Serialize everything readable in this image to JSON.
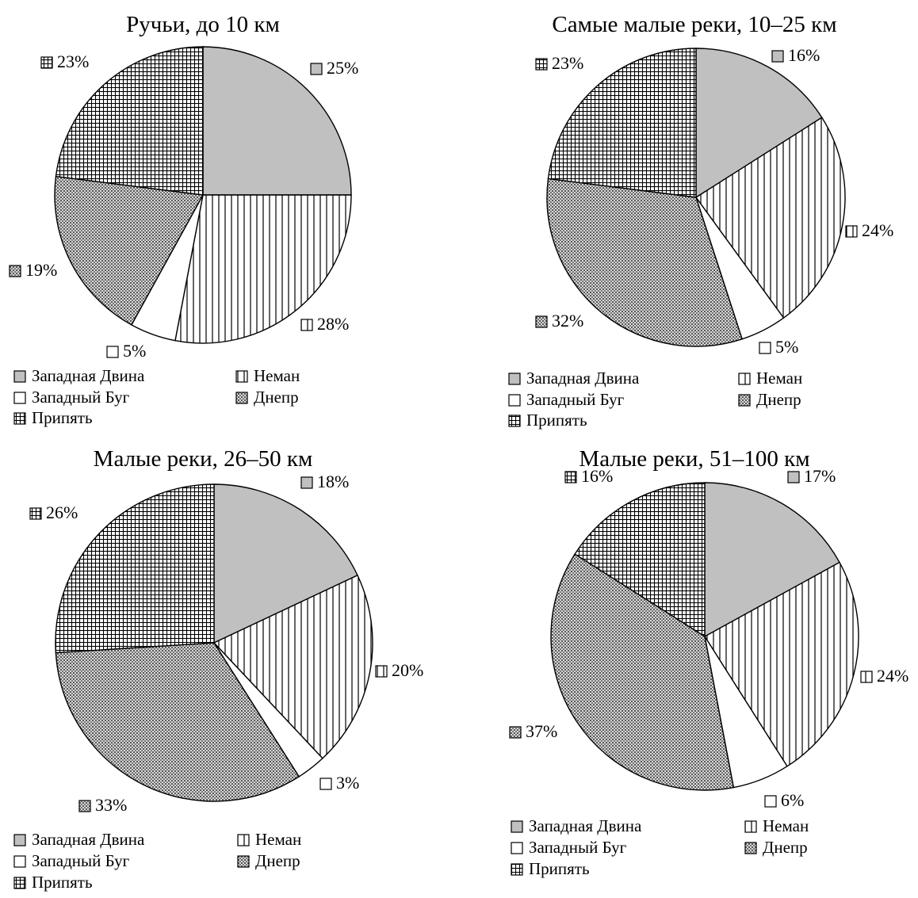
{
  "legend_items": [
    "Западная Двина",
    "Неман",
    "Западный Буг",
    "Днепр",
    "Припять"
  ],
  "patterns": [
    "gray",
    "vertical-lines",
    "white",
    "dense-crosshatch",
    "grid"
  ],
  "colors": {
    "gray": "#c0c0c0",
    "stroke": "#000000",
    "background": "#ffffff"
  },
  "chart_data": [
    {
      "type": "pie",
      "title": "Ручьи, до 10 км",
      "categories": [
        "Западная Двина",
        "Неман",
        "Западный Буг",
        "Днепр",
        "Припять"
      ],
      "values": [
        25,
        28,
        5,
        19,
        23
      ],
      "labels": [
        "25%",
        "28%",
        "5%",
        "19%",
        "23%"
      ],
      "legend": "bottom"
    },
    {
      "type": "pie",
      "title": "Самые малые реки, 10–25 км",
      "categories": [
        "Западная Двина",
        "Неман",
        "Западный Буг",
        "Днепр",
        "Припять"
      ],
      "values": [
        16,
        24,
        5,
        32,
        23
      ],
      "labels": [
        "16%",
        "24%",
        "5%",
        "32%",
        "23%"
      ],
      "legend": "bottom"
    },
    {
      "type": "pie",
      "title": "Малые реки, 26–50 км",
      "categories": [
        "Западная Двина",
        "Неман",
        "Западный Буг",
        "Днепр",
        "Припять"
      ],
      "values": [
        18,
        20,
        3,
        33,
        26
      ],
      "labels": [
        "18%",
        "20%",
        "3%",
        "33%",
        "26%"
      ],
      "legend": "bottom"
    },
    {
      "type": "pie",
      "title": "Малые реки, 51–100 км",
      "categories": [
        "Западная Двина",
        "Неман",
        "Западный Буг",
        "Днепр",
        "Припять"
      ],
      "values": [
        17,
        24,
        6,
        37,
        16
      ],
      "labels": [
        "17%",
        "24%",
        "6%",
        "37%",
        "16%"
      ],
      "legend": "bottom"
    }
  ]
}
